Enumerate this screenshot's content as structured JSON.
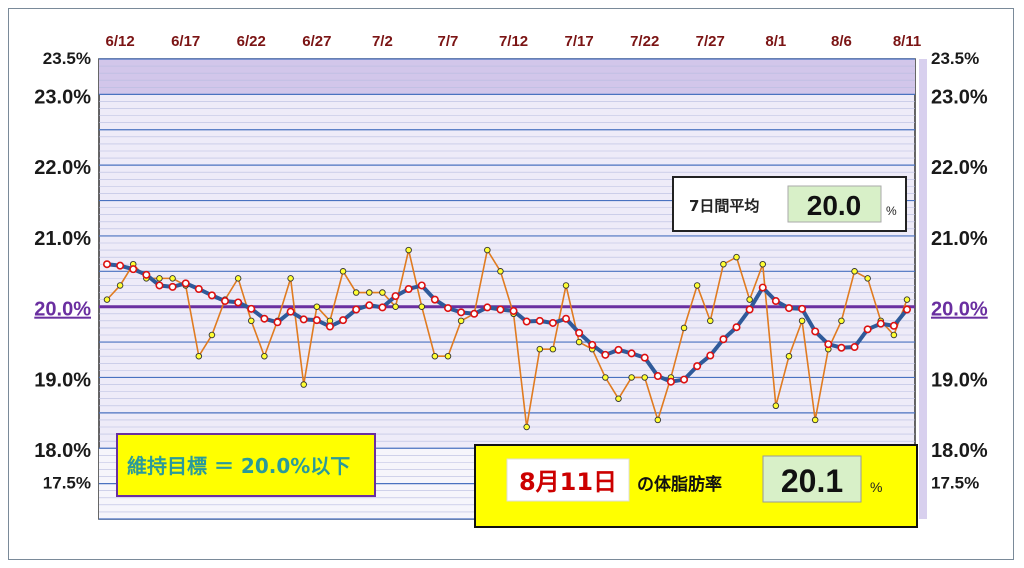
{
  "chart_data": {
    "type": "line",
    "x": [
      "6/11",
      "6/12",
      "6/13",
      "6/14",
      "6/15",
      "6/16",
      "6/17",
      "6/18",
      "6/19",
      "6/20",
      "6/21",
      "6/22",
      "6/23",
      "6/24",
      "6/25",
      "6/26",
      "6/27",
      "6/28",
      "6/29",
      "6/30",
      "7/1",
      "7/2",
      "7/3",
      "7/4",
      "7/5",
      "7/6",
      "7/7",
      "7/8",
      "7/9",
      "7/10",
      "7/11",
      "7/12",
      "7/13",
      "7/14",
      "7/15",
      "7/16",
      "7/17",
      "7/18",
      "7/19",
      "7/20",
      "7/21",
      "7/22",
      "7/23",
      "7/24",
      "7/25",
      "7/26",
      "7/27",
      "7/28",
      "7/29",
      "7/30",
      "7/31",
      "8/1",
      "8/2",
      "8/3",
      "8/4",
      "8/5",
      "8/6",
      "8/7",
      "8/8",
      "8/9",
      "8/10",
      "8/11"
    ],
    "x_tick_labels": [
      "6/12",
      "6/17",
      "6/22",
      "6/27",
      "7/2",
      "7/7",
      "7/12",
      "7/17",
      "7/22",
      "7/27",
      "8/1",
      "8/6",
      "8/11"
    ],
    "ylim": [
      17.0,
      23.5
    ],
    "y_tick_labels": [
      {
        "value": 23.5,
        "label": "23.5%"
      },
      {
        "value": 23.0,
        "label": "23.0%"
      },
      {
        "value": 22.0,
        "label": "22.0%"
      },
      {
        "value": 21.0,
        "label": "21.0%"
      },
      {
        "value": 20.0,
        "label": "20.0%"
      },
      {
        "value": 19.0,
        "label": "19.0%"
      },
      {
        "value": 18.0,
        "label": "18.0%"
      },
      {
        "value": 17.5,
        "label": "17.5%"
      }
    ],
    "goal_value": 20.0,
    "series": [
      {
        "values": [
          20.1,
          20.3,
          20.6,
          20.4,
          20.4,
          20.4,
          20.3,
          19.3,
          19.6,
          20.1,
          20.4,
          19.8,
          19.3,
          19.8,
          20.4,
          18.9,
          20.0,
          19.8,
          20.5,
          20.2,
          20.2,
          20.2,
          20.0,
          20.8,
          20.0,
          19.3,
          19.3,
          19.8,
          19.9,
          20.8,
          20.5,
          19.9,
          18.3,
          19.4,
          19.4,
          20.3,
          19.5,
          19.4,
          19.0,
          18.7,
          19.0,
          19.0,
          18.4,
          19.0,
          19.7,
          20.3,
          19.8,
          20.6,
          20.7,
          20.1,
          20.6,
          18.6,
          19.3,
          19.8,
          18.4,
          19.4,
          19.8,
          20.5,
          20.4,
          19.8,
          19.6,
          20.1
        ],
        "color": "#e07b20"
      },
      {
        "values": [
          20.6,
          20.58,
          20.53,
          20.45,
          20.3,
          20.28,
          20.33,
          20.25,
          20.16,
          20.08,
          20.06,
          19.97,
          19.83,
          19.78,
          19.93,
          19.82,
          19.81,
          19.72,
          19.81,
          19.96,
          20.02,
          19.99,
          20.15,
          20.25,
          20.3,
          20.1,
          19.98,
          19.92,
          19.9,
          19.99,
          19.96,
          19.94,
          19.79,
          19.8,
          19.77,
          19.83,
          19.63,
          19.46,
          19.32,
          19.39,
          19.34,
          19.28,
          19.02,
          18.94,
          18.97,
          19.16,
          19.31,
          19.54,
          19.71,
          19.96,
          20.27,
          20.08,
          19.98,
          19.97,
          19.65,
          19.47,
          19.42,
          19.43,
          19.68,
          19.76,
          19.73,
          19.96
        ],
        "color": "#2f5a9a"
      }
    ]
  },
  "avg_box": {
    "label": "7日間平均",
    "value": "20.0",
    "unit": "%"
  },
  "goal_box": {
    "text": "維持目標 ＝ 20.0%以下"
  },
  "today_box": {
    "date": "8月11日",
    "suffix": "の体脂肪率",
    "value": "20.1",
    "unit": "%"
  },
  "colors": {
    "plot_bg": "#eeebf8",
    "top_band": "#d2c6ea",
    "grid_major": "#4a72c0",
    "grid_minor": "#b8bce0",
    "goal_line": "#6a2fa0",
    "raw_line": "#e07b20",
    "avg_line": "#2f5a9a",
    "box_yellow": "#ffff00",
    "value_green": "#d8f0c8"
  }
}
